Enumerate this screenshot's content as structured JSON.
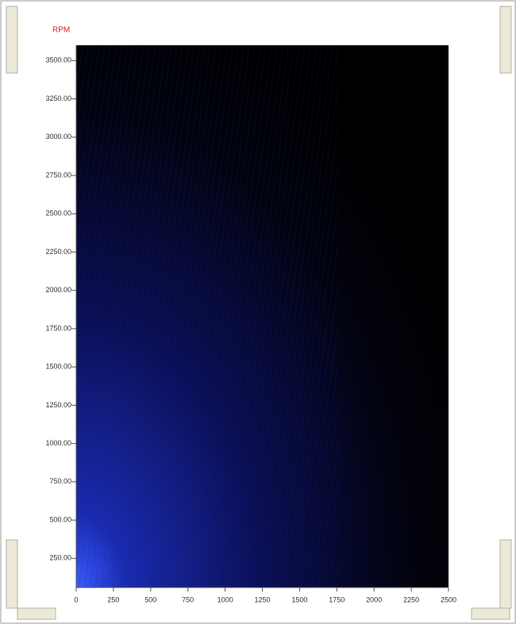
{
  "chart_data": {
    "type": "heatmap",
    "y_label": "RPM",
    "xlim": [
      0,
      2500
    ],
    "xticks": [
      0,
      250,
      500,
      750,
      1000,
      1250,
      1500,
      1750,
      2000,
      2250,
      2500
    ],
    "ylim": [
      60,
      3600
    ],
    "yticks": [
      {
        "value": 250,
        "label": "250.00"
      },
      {
        "value": 500,
        "label": "500.00"
      },
      {
        "value": 750,
        "label": "750.00"
      },
      {
        "value": 1000,
        "label": "1000.00"
      },
      {
        "value": 1250,
        "label": "1250.00"
      },
      {
        "value": 1500,
        "label": "1500.00"
      },
      {
        "value": 1750,
        "label": "1750.00"
      },
      {
        "value": 2000,
        "label": "2000.00"
      },
      {
        "value": 2250,
        "label": "2250.00"
      },
      {
        "value": 2500,
        "label": "2500.00"
      },
      {
        "value": 2750,
        "label": "2750.00"
      },
      {
        "value": 3000,
        "label": "3000.00"
      },
      {
        "value": 3250,
        "label": "3250.00"
      },
      {
        "value": 3500,
        "label": "3500.00"
      }
    ]
  }
}
